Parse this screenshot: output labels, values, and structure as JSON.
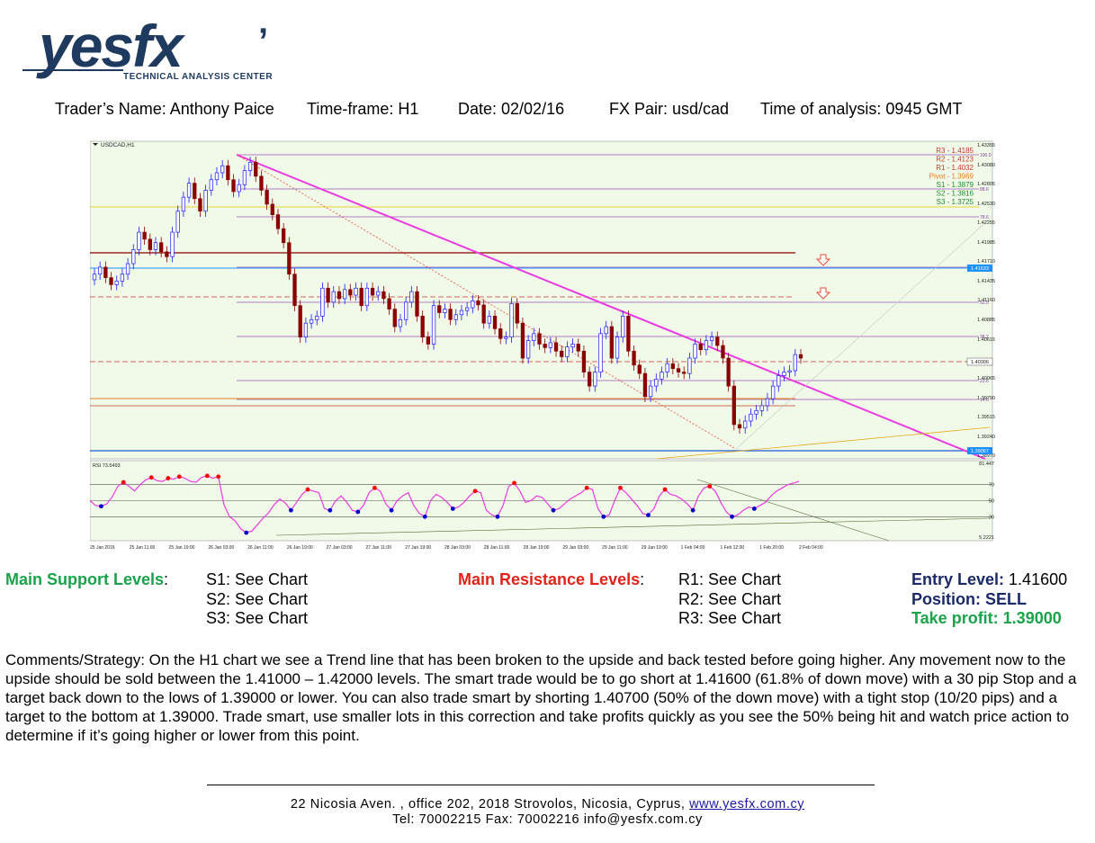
{
  "logo": {
    "brand": "yesfx",
    "tagline": "TECHNICAL ANALYSIS CENTER"
  },
  "header": {
    "trader": "Trader’s Name: Anthony Paice",
    "timeframe": "Time-frame:  H1",
    "date": "Date:  02/02/16",
    "pair": "FX Pair: usd/cad",
    "time": "Time of analysis: 0945 GMT"
  },
  "chart_data": {
    "type": "candlestick",
    "title": "USDCAD,H1",
    "colors": {
      "background": "#f1fae9",
      "up": "#1a1aff",
      "down": "#8b0000",
      "trendline": "#e83be0",
      "fib": "#9b59b6"
    },
    "price_axis": {
      "ylim": [
        1.3886,
        1.434
      ],
      "ticks": [
        "1.43355",
        "1.43080",
        "1.42805",
        "1.42530",
        "1.42255",
        "1.41985",
        "1.41710",
        "1.41435",
        "1.41160",
        "1.40885",
        "1.40615",
        "1.40065",
        "1.39790",
        "1.39515",
        "1.39240",
        "1.38970"
      ],
      "current_price": "1.40306",
      "blue_marker": "1.41633",
      "bottom_marker": "1.39067"
    },
    "pivots": [
      {
        "label": "R3 - 1.4185",
        "color": "#c0392b"
      },
      {
        "label": "R2 - 1.4123",
        "color": "#c0392b"
      },
      {
        "label": "R1 - 1.4032",
        "color": "#c0392b"
      },
      {
        "label": "Pivot - 1.3969",
        "color": "#e67e22"
      },
      {
        "label": "S1 - 1.3879",
        "color": "#1e8b2e"
      },
      {
        "label": "S2 - 1.3816",
        "color": "#1e8b2e"
      },
      {
        "label": "S3 - 1.3725",
        "color": "#1e8b2e"
      }
    ],
    "fib_levels": [
      "100.0",
      "88.6",
      "78.6",
      "61.8",
      "50.0",
      "38.2",
      "23.6",
      "14.6",
      "0.0"
    ],
    "x_labels": [
      "25 Jan 2016",
      "25 Jan 11:00",
      "25 Jan 19:00",
      "26 Jan 03:00",
      "26 Jan 11:00",
      "26 Jan 19:00",
      "27 Jan 03:00",
      "27 Jan 11:00",
      "27 Jan 19:00",
      "28 Jan 03:00",
      "28 Jan 11:00",
      "28 Jan 19:00",
      "29 Jan 03:00",
      "29 Jan 11:00",
      "29 Jan 19:00",
      "1 Feb 04:00",
      "1 Feb 12:00",
      "1 Feb 20:00",
      "2 Feb 04:00"
    ],
    "candles_close": [
      1.415,
      1.416,
      1.4145,
      1.4135,
      1.414,
      1.415,
      1.4165,
      1.4185,
      1.421,
      1.42,
      1.4185,
      1.4195,
      1.4182,
      1.4175,
      1.421,
      1.424,
      1.426,
      1.428,
      1.4258,
      1.424,
      1.427,
      1.4285,
      1.4295,
      1.4305,
      1.4285,
      1.4268,
      1.4278,
      1.4298,
      1.431,
      1.429,
      1.427,
      1.425,
      1.4235,
      1.4215,
      1.4195,
      1.415,
      1.4105,
      1.406,
      1.408,
      1.4085,
      1.409,
      1.413,
      1.411,
      1.4125,
      1.4115,
      1.4128,
      1.412,
      1.413,
      1.4105,
      1.413,
      1.412,
      1.4125,
      1.4115,
      1.41,
      1.4075,
      1.4085,
      1.411,
      1.4125,
      1.409,
      1.406,
      1.405,
      1.4105,
      1.4095,
      1.41,
      1.4085,
      1.4092,
      1.4098,
      1.4102,
      1.4112,
      1.4106,
      1.408,
      1.409,
      1.4072,
      1.4058,
      1.406,
      1.4108,
      1.408,
      1.403,
      1.4055,
      1.4065,
      1.405,
      1.4045,
      1.4052,
      1.404,
      1.4032,
      1.4046,
      1.405,
      1.404,
      1.401,
      1.399,
      1.401,
      1.4065,
      1.4075,
      1.403,
      1.406,
      1.409,
      1.404,
      1.402,
      1.4008,
      1.3975,
      1.399,
      1.4,
      1.401,
      1.4022,
      1.4015,
      1.401,
      1.4008,
      1.403,
      1.405,
      1.4042,
      1.4055,
      1.406,
      1.4048,
      1.403,
      1.399,
      1.3935,
      1.393,
      1.394,
      1.395,
      1.3955,
      1.3962,
      1.3972,
      1.399,
      1.4005,
      1.401,
      1.4012,
      1.4035,
      1.403
    ],
    "rsi": {
      "label": "RSI 73.5493",
      "levels": [
        "81.447",
        "70",
        "50",
        "30",
        "5.2221"
      ],
      "values": [
        50,
        44,
        43,
        46,
        55,
        68,
        73,
        68,
        62,
        70,
        76,
        79,
        75,
        74,
        78,
        77,
        80,
        78,
        74,
        73,
        79,
        81,
        78,
        80,
        45,
        30,
        25,
        15,
        10,
        12,
        20,
        28,
        35,
        45,
        52,
        47,
        38,
        48,
        58,
        64,
        62,
        60,
        40,
        38,
        50,
        56,
        48,
        38,
        36,
        44,
        60,
        66,
        62,
        46,
        38,
        50,
        56,
        60,
        44,
        34,
        30,
        50,
        58,
        54,
        48,
        40,
        42,
        48,
        56,
        62,
        60,
        38,
        32,
        30,
        44,
        68,
        72,
        62,
        48,
        50,
        56,
        54,
        46,
        38,
        40,
        46,
        52,
        56,
        60,
        66,
        64,
        40,
        30,
        32,
        50,
        66,
        60,
        52,
        44,
        34,
        32,
        40,
        56,
        64,
        58,
        56,
        52,
        46,
        38,
        56,
        66,
        68,
        62,
        48,
        36,
        30,
        32,
        38,
        42,
        40,
        44,
        48,
        56,
        62,
        66,
        70,
        72,
        74
      ]
    }
  },
  "support": {
    "title": "Main Support Levels",
    "colon": ":",
    "items": [
      "S1:  See Chart",
      "S2:  See Chart",
      "S3:  See Chart"
    ]
  },
  "resistance": {
    "title": "Main Resistance Levels",
    "colon": ":",
    "items": [
      "R1: See Chart",
      "R2: See Chart",
      "R3: See Chart"
    ]
  },
  "trade": {
    "entry_label": "Entry Level:",
    "entry_value": " 1.41600",
    "position": "Position: SELL",
    "take_profit": "Take profit: 1.39000"
  },
  "comments": "Comments/Strategy:   On the H1 chart we see a Trend line that has been broken to the upside and back tested before going higher.  Any movement now to the upside should be sold between the 1.41000 – 1.42000 levels.  The smart trade would be to go short at 1.41600 (61.8% of down move) with a 30 pip Stop and a target back down to the lows of 1.39000 or lower.  You can also trade smart by shorting 1.40700 (50% of the down move) with a tight stop (10/20 pips) and a target to the bottom at 1.39000.  Trade smart, use smaller lots in this correction and take profits quickly as you see the 50% being hit and watch price action to determine if it’s going higher or lower from this point.",
  "footer": {
    "address": "22 Nicosia Aven. ,  office 202,  2018 Strovolos,  Nicosia,  Cyprus,  ",
    "website": "www.yesfx.com.cy",
    "contact": "Tel:  70002215  Fax:  70002216  info@yesfx.com.cy"
  }
}
